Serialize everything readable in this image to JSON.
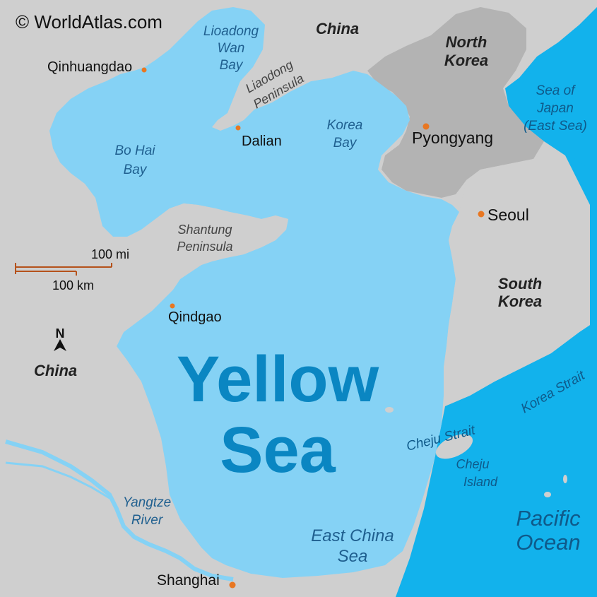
{
  "copyright": "© WorldAtlas.com",
  "colors": {
    "land": "#cfcfcf",
    "land_highlight": "#b3b3b3",
    "shallow_sea": "#85d2f5",
    "deep_sea": "#12b2ec",
    "river": "#85d2f5",
    "city_dot": "#e87722",
    "scale_bar": "#b5521b"
  },
  "countries": {
    "china_north": "China",
    "china_west": "China",
    "north_korea": [
      "North",
      "Korea"
    ],
    "south_korea": [
      "South",
      "Korea"
    ]
  },
  "water_bodies": {
    "liaodong_wan_bay": [
      "Lioadong",
      "Wan",
      "Bay"
    ],
    "bo_hai_bay": [
      "Bo Hai",
      "Bay"
    ],
    "korea_bay": [
      "Korea",
      "Bay"
    ],
    "sea_of_japan": [
      "Sea of",
      "Japan",
      "(East Sea)"
    ],
    "yellow_sea": [
      "Yellow",
      "Sea"
    ],
    "east_china_sea": [
      "East China",
      "Sea"
    ],
    "pacific_ocean": [
      "Pacific",
      "Ocean"
    ],
    "cheju_strait": "Cheju Strait",
    "korea_strait": "Korea Strait",
    "yangtze_river": [
      "Yangtze",
      "River"
    ]
  },
  "peninsulas": {
    "liaodong": [
      "Liaodong",
      "Peninsula"
    ],
    "shantung": [
      "Shantung",
      "Peninsula"
    ]
  },
  "islands": {
    "cheju": [
      "Cheju",
      "Island"
    ]
  },
  "cities": {
    "qinhuangdao": "Qinhuangdao",
    "dalian": "Dalian",
    "pyongyang": "Pyongyang",
    "seoul": "Seoul",
    "qindgao": "Qindgao",
    "shanghai": "Shanghai"
  },
  "scale": {
    "miles": "100 mi",
    "km": "100 km"
  },
  "compass": {
    "north_label": "N"
  }
}
